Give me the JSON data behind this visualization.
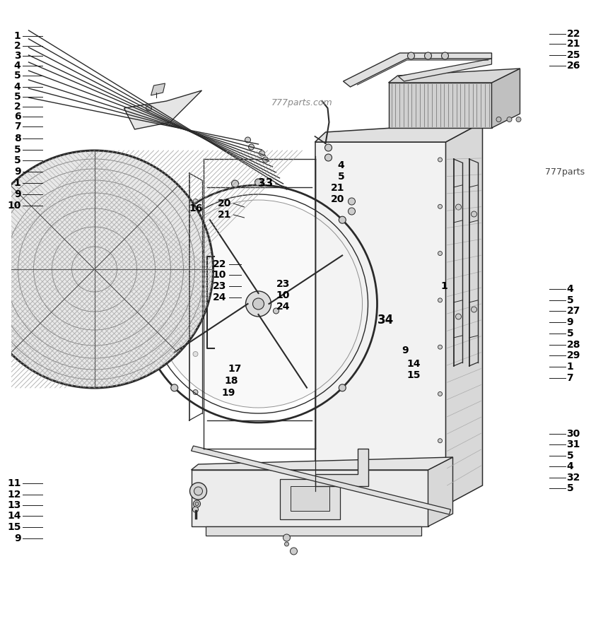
{
  "bg": "#ffffff",
  "lc": "#1a1a1a",
  "dc": "#2a2a2a",
  "wm1": "777parts.com",
  "wm2": "777parts",
  "left_labels": [
    [
      "1",
      0.953
    ],
    [
      "2",
      0.937
    ],
    [
      "3",
      0.921
    ],
    [
      "4",
      0.905
    ],
    [
      "5",
      0.889
    ],
    [
      "4",
      0.871
    ],
    [
      "5",
      0.855
    ],
    [
      "2",
      0.839
    ],
    [
      "6",
      0.823
    ],
    [
      "7",
      0.806
    ],
    [
      "8",
      0.787
    ],
    [
      "5",
      0.769
    ],
    [
      "5",
      0.751
    ],
    [
      "9",
      0.733
    ],
    [
      "1",
      0.715
    ],
    [
      "9",
      0.697
    ],
    [
      "10",
      0.678
    ],
    [
      "11",
      0.228
    ],
    [
      "12",
      0.21
    ],
    [
      "13",
      0.193
    ],
    [
      "14",
      0.175
    ],
    [
      "15",
      0.157
    ],
    [
      "9",
      0.139
    ]
  ],
  "right_labels": [
    [
      "22",
      0.956
    ],
    [
      "21",
      0.94
    ],
    [
      "25",
      0.922
    ],
    [
      "26",
      0.905
    ],
    [
      "4",
      0.543
    ],
    [
      "5",
      0.525
    ],
    [
      "27",
      0.507
    ],
    [
      "9",
      0.489
    ],
    [
      "5",
      0.471
    ],
    [
      "28",
      0.453
    ],
    [
      "29",
      0.435
    ],
    [
      "1",
      0.417
    ],
    [
      "7",
      0.399
    ],
    [
      "30",
      0.308
    ],
    [
      "31",
      0.291
    ],
    [
      "5",
      0.273
    ],
    [
      "4",
      0.255
    ],
    [
      "32",
      0.237
    ],
    [
      "5",
      0.22
    ]
  ]
}
